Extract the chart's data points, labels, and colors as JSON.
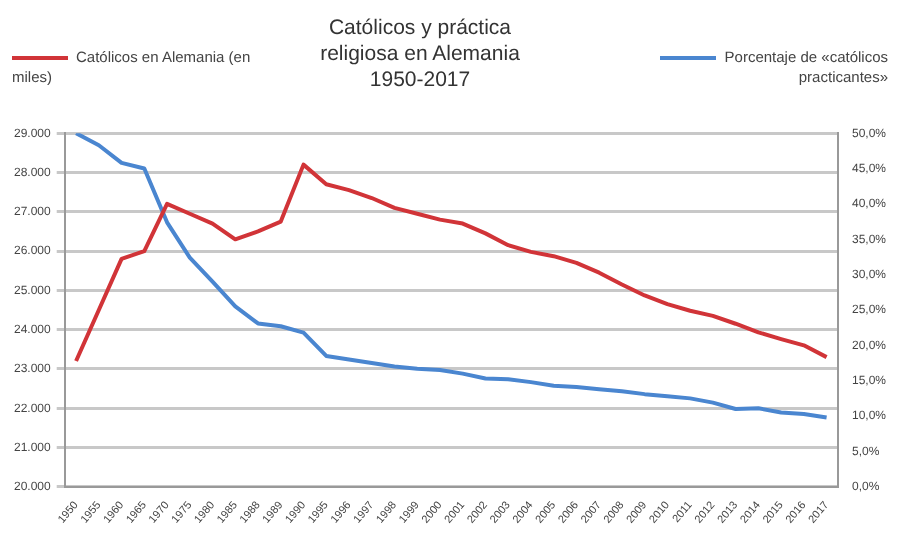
{
  "chart_data": {
    "type": "line",
    "title": "Católicos y práctica religiosa en Alemania 1950-2017",
    "categories": [
      "1950",
      "1955",
      "1960",
      "1965",
      "1970",
      "1975",
      "1980",
      "1985",
      "1988",
      "1989",
      "1990",
      "1995",
      "1996",
      "1997",
      "1998",
      "1999",
      "2000",
      "2001",
      "2002",
      "2003",
      "2004",
      "2005",
      "2006",
      "2007",
      "2008",
      "2009",
      "2010",
      "2011",
      "2012",
      "2013",
      "2014",
      "2015",
      "2016",
      "2017"
    ],
    "series": [
      {
        "name": "Católicos en Alemania (en miles)",
        "color": "#d13438",
        "values": [
          23200,
          24500,
          25800,
          26000,
          27200,
          26950,
          26700,
          26300,
          26500,
          26750,
          28200,
          27700,
          27550,
          27350,
          27100,
          26950,
          26800,
          26700,
          26450,
          26150,
          25980,
          25870,
          25700,
          25450,
          25150,
          24870,
          24650,
          24480,
          24350,
          24150,
          23930,
          23760,
          23600,
          23300
        ]
      },
      {
        "name": "Porcentaje de «católicos practicantes»",
        "color": "#4a86d0",
        "axis": "y2",
        "values": [
          50,
          48.3,
          45.8,
          45,
          37.4,
          32.4,
          29,
          25.5,
          23.1,
          22.7,
          21.8,
          18.5,
          18,
          17.5,
          17,
          16.7,
          16.5,
          16,
          15.3,
          15.2,
          14.8,
          14.3,
          14.1,
          13.8,
          13.5,
          13.1,
          12.8,
          12.5,
          11.9,
          11,
          11.1,
          10.5,
          10.3,
          9.8
        ]
      }
    ],
    "ylim": [
      20000,
      29000
    ],
    "yticks": [
      {
        "value": 20000,
        "label": "20.000"
      },
      {
        "value": 21000,
        "label": "21.000"
      },
      {
        "value": 22000,
        "label": "22.000"
      },
      {
        "value": 23000,
        "label": "23.000"
      },
      {
        "value": 24000,
        "label": "24.000"
      },
      {
        "value": 25000,
        "label": "25.000"
      },
      {
        "value": 26000,
        "label": "26.000"
      },
      {
        "value": 27000,
        "label": "27.000"
      },
      {
        "value": 28000,
        "label": "28.000"
      },
      {
        "value": 29000,
        "label": "29.000"
      }
    ],
    "y2lim": [
      0,
      50
    ],
    "y2ticks": [
      {
        "value": 0,
        "label": "0,0%"
      },
      {
        "value": 5,
        "label": "5,0%"
      },
      {
        "value": 10,
        "label": "10,0%"
      },
      {
        "value": 15,
        "label": "15,0%"
      },
      {
        "value": 20,
        "label": "20,0%"
      },
      {
        "value": 25,
        "label": "25,0%"
      },
      {
        "value": 30,
        "label": "30,0%"
      },
      {
        "value": 35,
        "label": "35,0%"
      },
      {
        "value": 40,
        "label": "40,0%"
      },
      {
        "value": 45,
        "label": "45,0%"
      },
      {
        "value": 50,
        "label": "50,0%"
      }
    ],
    "grid": "y",
    "legend": "top",
    "marker": "none",
    "line_style": "solid"
  }
}
